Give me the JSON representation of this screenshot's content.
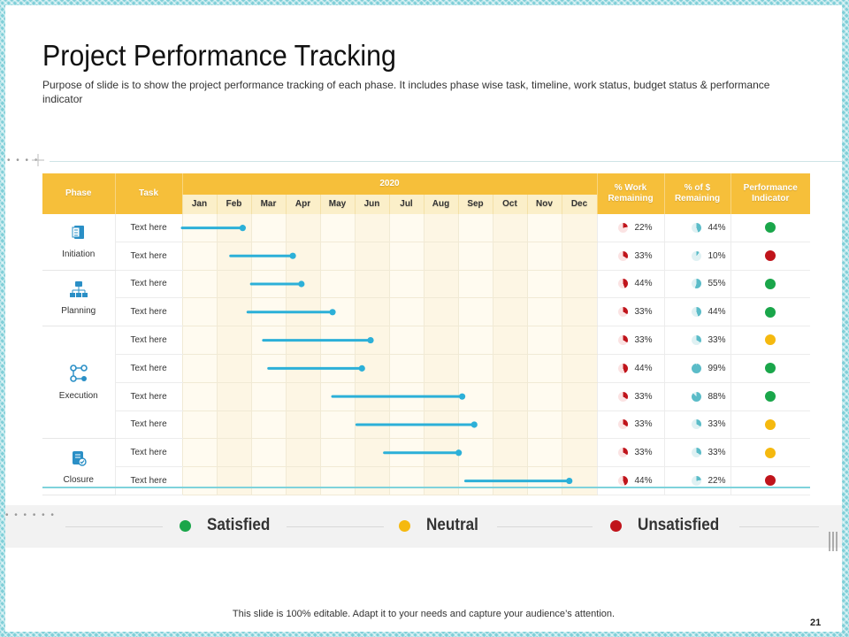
{
  "slide": {
    "title": "Project Performance Tracking",
    "subtitle": "Purpose of slide is to show the project performance tracking of each phase. It includes phase wise task, timeline, work status, budget status & performance indicator",
    "footer": "This slide is 100% editable. Adapt it to your needs and capture your audience’s attention.",
    "page_number": "21"
  },
  "table": {
    "headers": {
      "phase": "Phase",
      "task": "Task",
      "year": "2020",
      "work": "% Work Remaining",
      "budget": "% of $ Remaining",
      "indicator": "Performance Indicator"
    },
    "months": [
      "Jan",
      "Feb",
      "Mar",
      "Apr",
      "May",
      "Jun",
      "Jul",
      "Aug",
      "Sep",
      "Oct",
      "Nov",
      "Dec"
    ],
    "phases": [
      {
        "name": "Initiation",
        "icon": "document-icon",
        "rows": 2
      },
      {
        "name": "Planning",
        "icon": "org-chart-icon",
        "rows": 2
      },
      {
        "name": "Execution",
        "icon": "workflow-icon",
        "rows": 4
      },
      {
        "name": "Closure",
        "icon": "file-check-icon",
        "rows": 2
      }
    ],
    "rows": [
      {
        "task": "Text here",
        "start": 0.0,
        "end": 1.75,
        "work": "22%",
        "work_value": 22,
        "budget": "44%",
        "budget_value": 44,
        "indicator": "green"
      },
      {
        "task": "Text here",
        "start": 1.4,
        "end": 3.2,
        "work": "33%",
        "work_value": 33,
        "budget": "10%",
        "budget_value": 10,
        "indicator": "red"
      },
      {
        "task": "Text here",
        "start": 2.0,
        "end": 3.45,
        "work": "44%",
        "work_value": 44,
        "budget": "55%",
        "budget_value": 55,
        "indicator": "green"
      },
      {
        "task": "Text here",
        "start": 1.9,
        "end": 4.35,
        "work": "33%",
        "work_value": 33,
        "budget": "44%",
        "budget_value": 44,
        "indicator": "green"
      },
      {
        "task": "Text here",
        "start": 2.35,
        "end": 5.45,
        "work": "33%",
        "work_value": 33,
        "budget": "33%",
        "budget_value": 33,
        "indicator": "yellow"
      },
      {
        "task": "Text here",
        "start": 2.5,
        "end": 5.2,
        "work": "44%",
        "work_value": 44,
        "budget": "99%",
        "budget_value": 99,
        "indicator": "green"
      },
      {
        "task": "Text here",
        "start": 4.35,
        "end": 8.1,
        "work": "33%",
        "work_value": 33,
        "budget": "88%",
        "budget_value": 88,
        "indicator": "green"
      },
      {
        "task": "Text here",
        "start": 5.05,
        "end": 8.45,
        "work": "33%",
        "work_value": 33,
        "budget": "33%",
        "budget_value": 33,
        "indicator": "yellow"
      },
      {
        "task": "Text here",
        "start": 5.85,
        "end": 8.0,
        "work": "33%",
        "work_value": 33,
        "budget": "33%",
        "budget_value": 33,
        "indicator": "yellow"
      },
      {
        "task": "Text here",
        "start": 8.2,
        "end": 11.2,
        "work": "44%",
        "work_value": 44,
        "budget": "22%",
        "budget_value": 22,
        "indicator": "red"
      }
    ]
  },
  "legend": [
    {
      "label": "Satisfied",
      "color": "#1aa64a"
    },
    {
      "label": "Neutral",
      "color": "#f5b90f"
    },
    {
      "label": "Unsatisfied",
      "color": "#c0141b"
    }
  ],
  "colors": {
    "header": "#f6bf3a",
    "bar": "#2cb0d8",
    "work_pie": "#c0141b",
    "budget_pie": "#5bbcc8",
    "green": "#1aa64a",
    "yellow": "#f5b90f",
    "red": "#c0141b"
  }
}
